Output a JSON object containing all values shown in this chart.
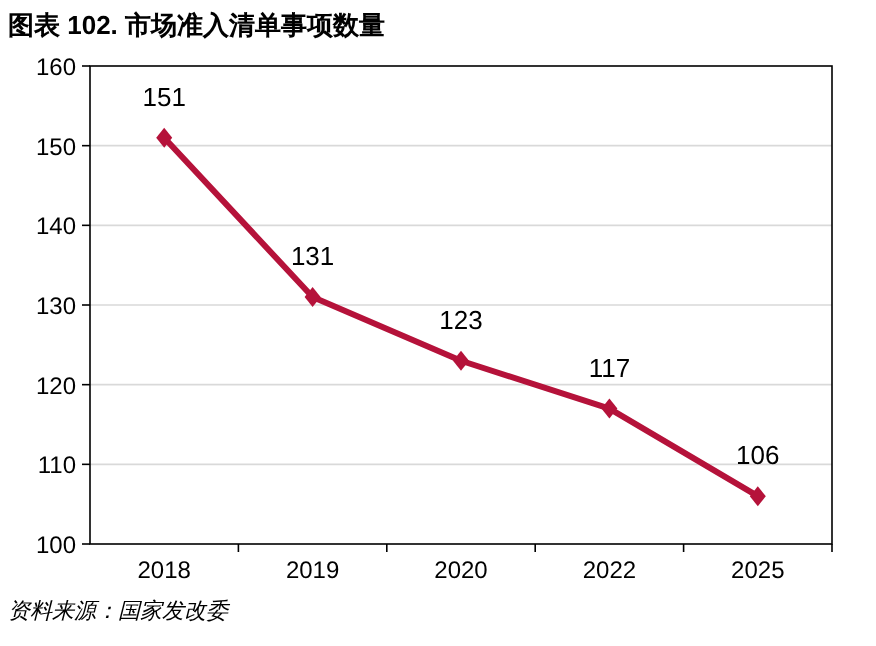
{
  "chart_data": {
    "type": "line",
    "title": "图表 102. 市场准入清单事项数量",
    "categories": [
      "2018",
      "2019",
      "2020",
      "2022",
      "2025"
    ],
    "values": [
      151,
      131,
      123,
      117,
      106
    ],
    "color": "#b5123a",
    "ylim": [
      100,
      160
    ],
    "yticks": [
      100,
      110,
      120,
      130,
      140,
      150,
      160
    ],
    "grid": "y",
    "marker": "diamond",
    "line_style": "solid",
    "data_labels": true,
    "annotations": [
      "资料来源：国家发改委"
    ]
  }
}
